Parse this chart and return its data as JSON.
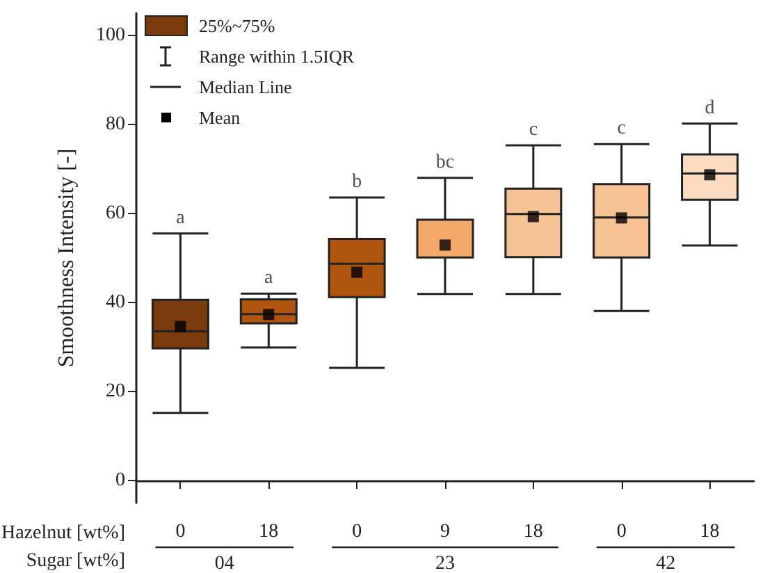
{
  "chart_data": {
    "type": "box",
    "ylabel": "Smoothness Intensity [-]",
    "xlabel": "Hazelnut [wt%]",
    "categories": [
      "0",
      "18",
      "0",
      "9",
      "18",
      "0",
      "18"
    ],
    "ylim": [
      -5,
      105
    ],
    "yticks": [
      0,
      20,
      40,
      60,
      80,
      100
    ],
    "grid": false,
    "legend": "top left",
    "marker": "square",
    "series": [
      {
        "name": "25%~75%",
        "colors": [
          "#7a3b0c",
          "#b0550f",
          "#b0550f",
          "#f4a96a",
          "#f7c196",
          "#f7c196",
          "#fbdcc1"
        ],
        "boxes": [
          {
            "low": 15.2,
            "q1": 29.7,
            "median": 33.5,
            "q3": 40.6,
            "high": 55.5,
            "mean": 34.6
          },
          {
            "low": 29.9,
            "q1": 35.3,
            "median": 37.4,
            "q3": 40.7,
            "high": 42,
            "mean": 37.3
          },
          {
            "low": 25.3,
            "q1": 41.2,
            "median": 48.7,
            "q3": 54.3,
            "high": 63.6,
            "mean": 46.8
          },
          {
            "low": 41.9,
            "q1": 50.1,
            "median": 50.1,
            "q3": 58.6,
            "high": 68,
            "mean": 52.9
          },
          {
            "low": 41.9,
            "q1": 50.2,
            "median": 59.9,
            "q3": 65.6,
            "high": 75.3,
            "mean": 59.3
          },
          {
            "low": 38.1,
            "q1": 50.1,
            "median": 59.1,
            "q3": 66.6,
            "high": 75.6,
            "mean": 59.0
          },
          {
            "low": 52.8,
            "q1": 63.1,
            "median": 69,
            "q3": 73.3,
            "high": 80.2,
            "mean": 68.7
          }
        ]
      }
    ],
    "annotations": [
      "Range within 1.5IQR",
      "Median Line",
      "Mean",
      "Sugar [wt%]",
      "04",
      "23",
      "42",
      "a",
      "a",
      "b",
      "bc",
      "c",
      "c",
      "d"
    ]
  }
}
